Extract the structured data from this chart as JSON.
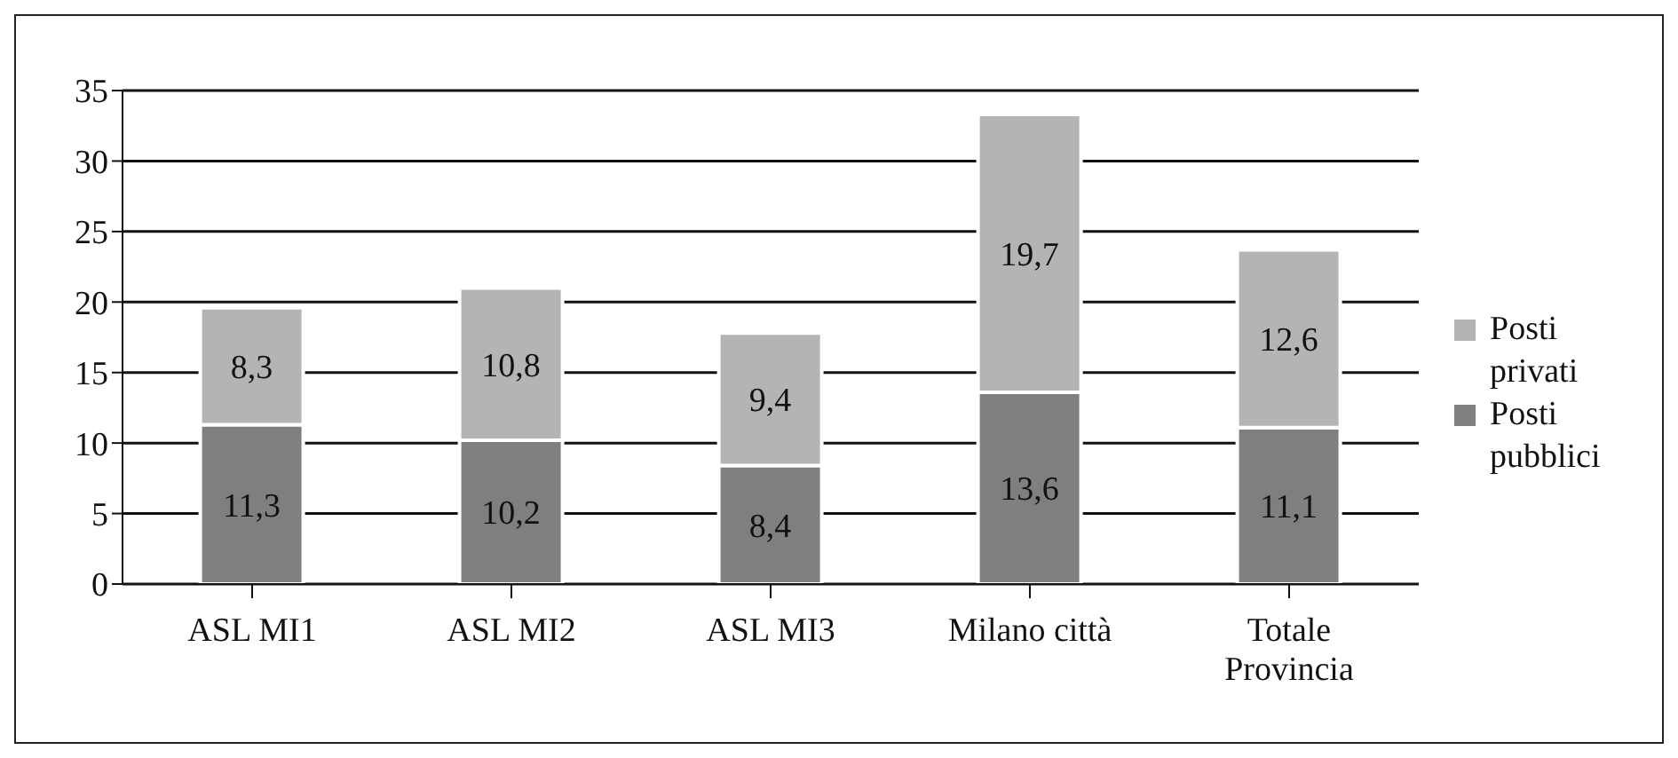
{
  "chart_data": {
    "type": "bar",
    "stacked": true,
    "categories": [
      "ASL MI1",
      "ASL MI2",
      "ASL MI3",
      "Milano città",
      "Totale Provincia"
    ],
    "series": [
      {
        "name": "Posti pubblici",
        "color": "#7f7f7f",
        "values": [
          11.3,
          10.2,
          8.4,
          13.6,
          11.1
        ],
        "value_labels": [
          "11,3",
          "10,2",
          "8,4",
          "13,6",
          "11,1"
        ]
      },
      {
        "name": "Posti privati",
        "color": "#b4b4b4",
        "values": [
          8.3,
          10.8,
          9.4,
          19.7,
          12.6
        ],
        "value_labels": [
          "8,3",
          "10,8",
          "9,4",
          "19,7",
          "12,6"
        ]
      }
    ],
    "ylim": [
      0,
      35
    ],
    "yticks": [
      0,
      5,
      10,
      15,
      20,
      25,
      30,
      35
    ],
    "grid": "y",
    "legend": "right"
  }
}
